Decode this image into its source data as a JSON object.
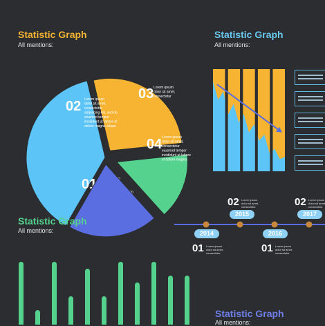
{
  "colors": {
    "background": "#2b2d30",
    "orange": "#f6b432",
    "green": "#56d28f",
    "blue": "#5b6ee1",
    "light_blue": "#5cc4f6",
    "timeline_blue": "#8fd0f5"
  },
  "blocks": {
    "pie": {
      "title": "Statistic Graph",
      "subtitle": "All mentions:",
      "title_color": "#f6b432"
    },
    "bars": {
      "title": "Statistic Graph",
      "subtitle": "All mentions:",
      "title_color": "#69c9ef"
    },
    "columns": {
      "title": "Statistic Graph",
      "subtitle": "All mentions:",
      "title_color": "#56d28f"
    },
    "bottom": {
      "title": "Statistic Graph",
      "subtitle": "All mentions:",
      "title_color": "#6e80e8"
    }
  },
  "chart_data": [
    {
      "type": "pie",
      "slices": [
        {
          "label": "01",
          "value": 38,
          "color": "#5cc4f6",
          "text": [
            "Lorem ipsum",
            "dolor sit amet,",
            "consectetur",
            "adipiscing elit, sed do",
            "eiusmod tempor",
            "incididunt ut labore et",
            "dolore magna aliqua."
          ]
        },
        {
          "label": "02",
          "value": 27,
          "color": "#f6b432",
          "text": [
            "Lorem ipsum",
            "dolor sit amet,",
            "consectetur",
            "adipiscing elit, sed do",
            "eiusmod tempor",
            "incididunt ut labore et",
            "dolore magna aliqua."
          ]
        },
        {
          "label": "03",
          "value": 15,
          "color": "#56d28f",
          "text": [
            "Lorem ipsum",
            "dolor sit amet,",
            "consectetur"
          ]
        },
        {
          "label": "04",
          "value": 20,
          "color": "#5b6ee1",
          "text": [
            "Lorem ipsum",
            "dolor sit amet,",
            "consectetur",
            "eiusmod tempor",
            "incididunt ut labore",
            "et dolore magna"
          ]
        }
      ]
    },
    {
      "type": "area",
      "columns": 5,
      "series": [
        {
          "color": "#5cc4f6",
          "values": [
            88,
            70,
            78,
            56,
            66,
            48,
            56,
            38,
            46,
            30,
            36,
            18,
            22,
            12,
            14
          ]
        }
      ],
      "trend_line": {
        "from": 85,
        "to": 40
      },
      "ylim": [
        0,
        100
      ]
    },
    {
      "type": "bar",
      "values": [
        95,
        25,
        95,
        45,
        85,
        45,
        95,
        65,
        95,
        75,
        75,
        65
      ],
      "ylim": [
        0,
        100
      ]
    }
  ],
  "timeline": {
    "top": [
      {
        "num": "02",
        "year": "2015",
        "text": [
          "Lorem ipsum",
          "dolor sit amet,",
          "consectetur"
        ]
      },
      {
        "num": "02",
        "year": "2017",
        "text": [
          "Lorem ipsum",
          "dolor sit amet,",
          "consectetur"
        ]
      }
    ],
    "bottom": [
      {
        "num": "01",
        "year": "2014",
        "text": [
          "Lorem ipsum",
          "dolor sit amet,",
          "consectetur"
        ]
      },
      {
        "num": "01",
        "year": "2016",
        "text": [
          "Lorem ipsum",
          "dolor sit amet,",
          "consectetur"
        ]
      }
    ]
  },
  "legend": [
    [
      "Lorem ipsum dolor sit",
      "amet, consectetur"
    ],
    [
      "Lorem ipsum dolor sit",
      "amet, consectetur"
    ],
    [
      "Lorem ipsum dolor sit",
      "amet, consectetur"
    ],
    [
      "Lorem ipsum dolor sit",
      "amet, consectetur"
    ],
    [
      "Lorem ipsum dolor sit",
      "amet, consectetur"
    ]
  ]
}
